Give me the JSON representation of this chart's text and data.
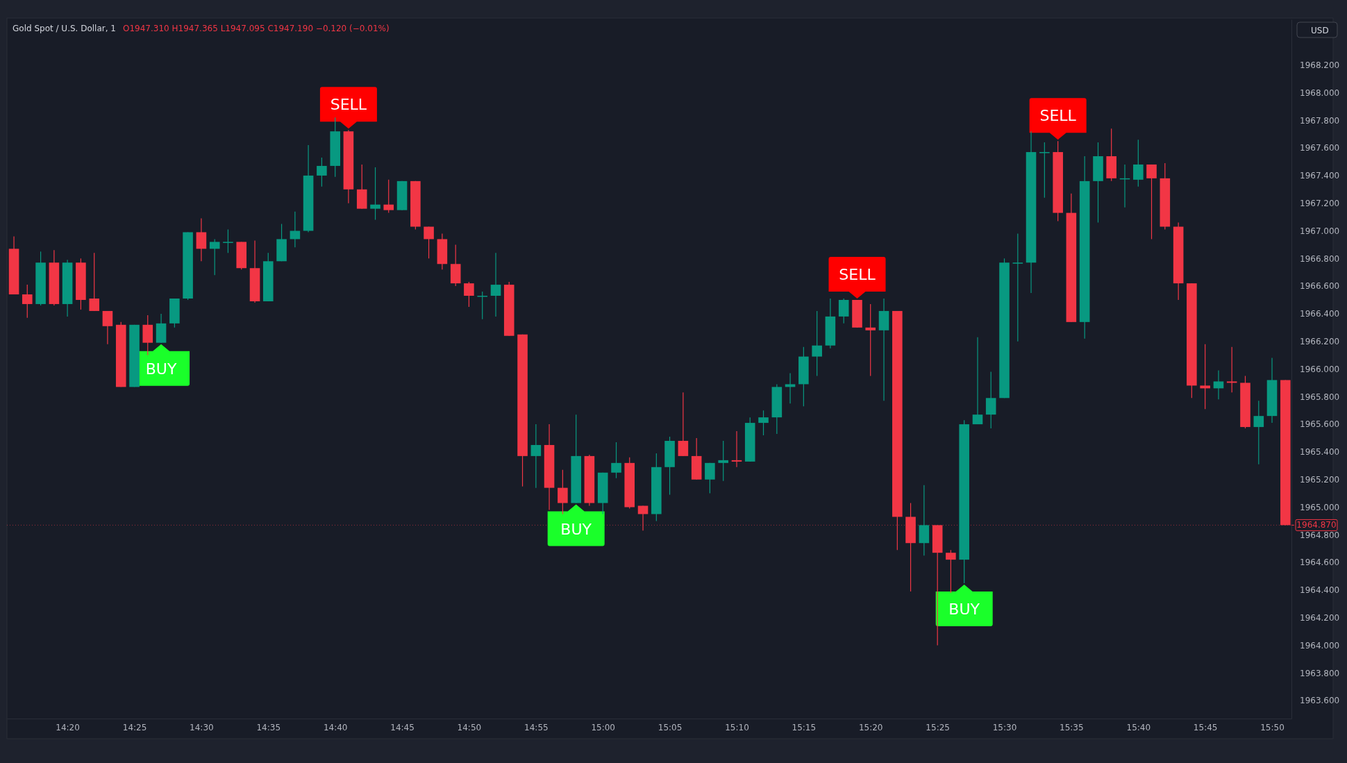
{
  "chart_data": {
    "type": "candlestick",
    "title": "Gold Spot / U.S. Dollar, 1",
    "subtitle": "O1947.310 H1947.365 L1947.095 C1947.190 −0.120 (−0.01%)",
    "x": [
      14.2667,
      14.2833,
      14.3,
      14.3167,
      14.3333,
      14.35,
      14.3667,
      14.3833,
      14.4,
      14.4167,
      14.4333,
      14.45,
      14.4667,
      14.4833,
      14.5,
      14.5167,
      14.5333,
      14.55,
      14.5667,
      14.5833,
      14.6,
      14.6167,
      14.6333,
      14.65,
      14.6667,
      14.6833,
      14.7,
      14.7167,
      14.7333,
      14.75,
      14.7667,
      14.7833,
      14.8,
      14.8167,
      14.8333,
      14.85,
      14.8667,
      14.8833,
      14.9,
      14.9167,
      14.9333,
      14.95,
      14.9667,
      14.9833,
      15,
      15.0167,
      15.0333,
      15.05,
      15.0667,
      15.0833,
      15.1,
      15.1167,
      15.1333,
      15.15,
      15.1667,
      15.1833,
      15.2,
      15.2167,
      15.2333,
      15.25,
      15.2667,
      15.2833,
      15.3,
      15.3167,
      15.3333,
      15.35,
      15.3667,
      15.3833,
      15.4,
      15.4167,
      15.4333,
      15.45,
      15.4667,
      15.4833,
      15.5,
      15.5167,
      15.5333,
      15.55,
      15.5667,
      15.5833,
      15.6,
      15.6167,
      15.6333,
      15.65,
      15.6667,
      15.6833,
      15.7,
      15.7167,
      15.7333,
      15.75,
      15.7667,
      15.7833,
      15.8,
      15.8167,
      15.8333,
      15.85
    ],
    "ohlc": [
      [
        1966.87,
        1966.96,
        1966.54,
        1966.54
      ],
      [
        1966.54,
        1966.61,
        1966.37,
        1966.47
      ],
      [
        1966.47,
        1966.85,
        1966.46,
        1966.77
      ],
      [
        1966.77,
        1966.86,
        1966.46,
        1966.47
      ],
      [
        1966.47,
        1966.79,
        1966.38,
        1966.77
      ],
      [
        1966.77,
        1966.8,
        1966.43,
        1966.5
      ],
      [
        1966.51,
        1966.84,
        1966.42,
        1966.42
      ],
      [
        1966.42,
        1966.42,
        1966.18,
        1966.31
      ],
      [
        1966.32,
        1966.34,
        1965.87,
        1965.87
      ],
      [
        1965.87,
        1966.32,
        1965.87,
        1966.32
      ],
      [
        1966.32,
        1966.39,
        1966.1,
        1966.19
      ],
      [
        1966.19,
        1966.4,
        1966.19,
        1966.33
      ],
      [
        1966.33,
        1966.51,
        1966.3,
        1966.51
      ],
      [
        1966.51,
        1966.99,
        1966.5,
        1966.99
      ],
      [
        1966.99,
        1967.09,
        1966.78,
        1966.87
      ],
      [
        1966.87,
        1966.94,
        1966.68,
        1966.92
      ],
      [
        1966.92,
        1967.01,
        1966.84,
        1966.92
      ],
      [
        1966.92,
        1966.92,
        1966.72,
        1966.73
      ],
      [
        1966.73,
        1966.93,
        1966.48,
        1966.49
      ],
      [
        1966.49,
        1966.84,
        1966.49,
        1966.78
      ],
      [
        1966.78,
        1967.05,
        1966.78,
        1966.94
      ],
      [
        1966.94,
        1967.14,
        1966.88,
        1967.0
      ],
      [
        1967.0,
        1967.62,
        1966.99,
        1967.4
      ],
      [
        1967.4,
        1967.53,
        1967.32,
        1967.47
      ],
      [
        1967.47,
        1967.82,
        1967.39,
        1967.72
      ],
      [
        1967.72,
        1967.73,
        1967.2,
        1967.3
      ],
      [
        1967.3,
        1967.48,
        1967.16,
        1967.16
      ],
      [
        1967.16,
        1967.46,
        1967.08,
        1967.19
      ],
      [
        1967.19,
        1967.37,
        1967.13,
        1967.15
      ],
      [
        1967.15,
        1967.36,
        1967.15,
        1967.36
      ],
      [
        1967.36,
        1967.36,
        1967.01,
        1967.03
      ],
      [
        1967.03,
        1967.03,
        1966.8,
        1966.94
      ],
      [
        1966.94,
        1966.98,
        1966.72,
        1966.76
      ],
      [
        1966.76,
        1966.9,
        1966.6,
        1966.62
      ],
      [
        1966.62,
        1966.63,
        1966.45,
        1966.53
      ],
      [
        1966.53,
        1966.56,
        1966.36,
        1966.53
      ],
      [
        1966.53,
        1966.84,
        1966.38,
        1966.61
      ],
      [
        1966.61,
        1966.63,
        1966.24,
        1966.24
      ],
      [
        1966.25,
        1966.25,
        1965.15,
        1965.37
      ],
      [
        1965.37,
        1965.6,
        1965.14,
        1965.45
      ],
      [
        1965.45,
        1965.6,
        1964.98,
        1965.14
      ],
      [
        1965.14,
        1965.27,
        1964.95,
        1965.03
      ],
      [
        1965.03,
        1965.67,
        1965.03,
        1965.37
      ],
      [
        1965.37,
        1965.38,
        1965.01,
        1965.03
      ],
      [
        1965.03,
        1965.25,
        1964.95,
        1965.25
      ],
      [
        1965.25,
        1965.47,
        1965.21,
        1965.32
      ],
      [
        1965.32,
        1965.36,
        1964.99,
        1965.0
      ],
      [
        1965.01,
        1965.01,
        1964.83,
        1964.95
      ],
      [
        1964.95,
        1965.39,
        1964.9,
        1965.29
      ],
      [
        1965.29,
        1965.51,
        1965.09,
        1965.48
      ],
      [
        1965.48,
        1965.83,
        1965.37,
        1965.37
      ],
      [
        1965.37,
        1965.5,
        1965.2,
        1965.2
      ],
      [
        1965.2,
        1965.32,
        1965.1,
        1965.32
      ],
      [
        1965.32,
        1965.48,
        1965.19,
        1965.34
      ],
      [
        1965.34,
        1965.55,
        1965.29,
        1965.33
      ],
      [
        1965.33,
        1965.65,
        1965.33,
        1965.61
      ],
      [
        1965.61,
        1965.7,
        1965.52,
        1965.65
      ],
      [
        1965.65,
        1965.89,
        1965.53,
        1965.87
      ],
      [
        1965.87,
        1965.97,
        1965.75,
        1965.89
      ],
      [
        1965.89,
        1966.16,
        1965.73,
        1966.09
      ],
      [
        1966.09,
        1966.42,
        1965.95,
        1966.17
      ],
      [
        1966.17,
        1966.51,
        1966.15,
        1966.38
      ],
      [
        1966.38,
        1966.51,
        1966.33,
        1966.5
      ],
      [
        1966.5,
        1966.5,
        1966.3,
        1966.3
      ],
      [
        1966.3,
        1966.47,
        1965.95,
        1966.28
      ],
      [
        1966.28,
        1966.51,
        1965.77,
        1966.42
      ],
      [
        1966.42,
        1966.42,
        1964.69,
        1964.93
      ],
      [
        1964.93,
        1965.03,
        1964.39,
        1964.74
      ],
      [
        1964.74,
        1965.16,
        1964.65,
        1964.87
      ],
      [
        1964.87,
        1964.87,
        1964.0,
        1964.67
      ],
      [
        1964.67,
        1964.69,
        1964.38,
        1964.62
      ],
      [
        1964.62,
        1965.63,
        1964.45,
        1965.6
      ],
      [
        1965.6,
        1966.23,
        1965.6,
        1965.67
      ],
      [
        1965.67,
        1965.98,
        1965.57,
        1965.79
      ],
      [
        1965.79,
        1966.8,
        1965.79,
        1966.77
      ],
      [
        1966.77,
        1966.98,
        1966.2,
        1966.77
      ],
      [
        1966.77,
        1967.72,
        1966.55,
        1967.57
      ],
      [
        1967.57,
        1967.64,
        1967.24,
        1967.57
      ],
      [
        1967.57,
        1967.65,
        1967.07,
        1967.13
      ],
      [
        1967.13,
        1967.27,
        1966.34,
        1966.34
      ],
      [
        1966.34,
        1967.54,
        1966.22,
        1967.36
      ],
      [
        1967.36,
        1967.64,
        1967.06,
        1967.54
      ],
      [
        1967.54,
        1967.74,
        1967.36,
        1967.38
      ],
      [
        1967.38,
        1967.48,
        1967.17,
        1967.38
      ],
      [
        1967.37,
        1967.66,
        1967.32,
        1967.48
      ],
      [
        1967.48,
        1967.48,
        1966.94,
        1967.38
      ],
      [
        1967.38,
        1967.49,
        1967.01,
        1967.03
      ],
      [
        1967.03,
        1967.06,
        1966.5,
        1966.62
      ],
      [
        1966.62,
        1966.62,
        1965.79,
        1965.88
      ],
      [
        1965.88,
        1966.18,
        1965.71,
        1965.86
      ],
      [
        1965.86,
        1965.99,
        1965.78,
        1965.91
      ],
      [
        1965.91,
        1966.16,
        1965.83,
        1965.9
      ],
      [
        1965.9,
        1965.95,
        1965.57,
        1965.58
      ],
      [
        1965.58,
        1965.77,
        1965.31,
        1965.66
      ],
      [
        1965.66,
        1966.08,
        1965.61,
        1965.92
      ],
      [
        1965.92,
        1965.92,
        1964.87,
        1964.87
      ]
    ],
    "xlim": [
      14.258,
      15.8575
    ],
    "ylim": [
      1963.47,
      1968.53
    ],
    "xticks": [
      {
        "value": 14.3333,
        "label": "14:20"
      },
      {
        "value": 14.4167,
        "label": "14:25"
      },
      {
        "value": 14.5,
        "label": "14:30"
      },
      {
        "value": 14.5833,
        "label": "14:35"
      },
      {
        "value": 14.6667,
        "label": "14:40"
      },
      {
        "value": 14.75,
        "label": "14:45"
      },
      {
        "value": 14.8333,
        "label": "14:50"
      },
      {
        "value": 14.9167,
        "label": "14:55"
      },
      {
        "value": 15,
        "label": "15:00"
      },
      {
        "value": 15.0833,
        "label": "15:05"
      },
      {
        "value": 15.1667,
        "label": "15:10"
      },
      {
        "value": 15.25,
        "label": "15:15"
      },
      {
        "value": 15.3333,
        "label": "15:20"
      },
      {
        "value": 15.4167,
        "label": "15:25"
      },
      {
        "value": 15.5,
        "label": "15:30"
      },
      {
        "value": 15.5833,
        "label": "15:35"
      },
      {
        "value": 15.6667,
        "label": "15:40"
      },
      {
        "value": 15.75,
        "label": "15:45"
      },
      {
        "value": 15.8333,
        "label": "15:50"
      }
    ],
    "yticks": [
      {
        "value": 1963.6,
        "label": "1963.600"
      },
      {
        "value": 1963.8,
        "label": "1963.800"
      },
      {
        "value": 1964,
        "label": "1964.000"
      },
      {
        "value": 1964.2,
        "label": "1964.200"
      },
      {
        "value": 1964.4,
        "label": "1964.400"
      },
      {
        "value": 1964.6,
        "label": "1964.600"
      },
      {
        "value": 1964.8,
        "label": "1964.800"
      },
      {
        "value": 1965,
        "label": "1965.000"
      },
      {
        "value": 1965.2,
        "label": "1965.200"
      },
      {
        "value": 1965.4,
        "label": "1965.400"
      },
      {
        "value": 1965.6,
        "label": "1965.600"
      },
      {
        "value": 1965.8,
        "label": "1965.800"
      },
      {
        "value": 1966,
        "label": "1966.000"
      },
      {
        "value": 1966.2,
        "label": "1966.200"
      },
      {
        "value": 1966.4,
        "label": "1966.400"
      },
      {
        "value": 1966.6,
        "label": "1966.600"
      },
      {
        "value": 1966.8,
        "label": "1966.800"
      },
      {
        "value": 1967,
        "label": "1967.000"
      },
      {
        "value": 1967.2,
        "label": "1967.200"
      },
      {
        "value": 1967.4,
        "label": "1967.400"
      },
      {
        "value": 1967.6,
        "label": "1967.600"
      },
      {
        "value": 1967.8,
        "label": "1967.800"
      },
      {
        "value": 1968,
        "label": "1968.000"
      },
      {
        "value": 1968.2,
        "label": "1968.200"
      }
    ],
    "ref_lines": [
      {
        "axis": "y",
        "value": 1964.87,
        "label": "1964.870",
        "color": "#f23645"
      }
    ],
    "annotations": [
      "USD",
      {
        "text": "SELL",
        "x": 14.6833,
        "y": 1967.73
      },
      {
        "text": "SELL",
        "x": 15.3167,
        "y": 1966.5
      },
      {
        "text": "SELL",
        "x": 15.5667,
        "y": 1967.65
      },
      {
        "text": "BUY",
        "x": 14.45,
        "y": 1966.19
      },
      {
        "text": "BUY",
        "x": 14.9667,
        "y": 1965.03
      },
      {
        "text": "BUY",
        "x": 15.45,
        "y": 1964.45
      }
    ]
  }
}
